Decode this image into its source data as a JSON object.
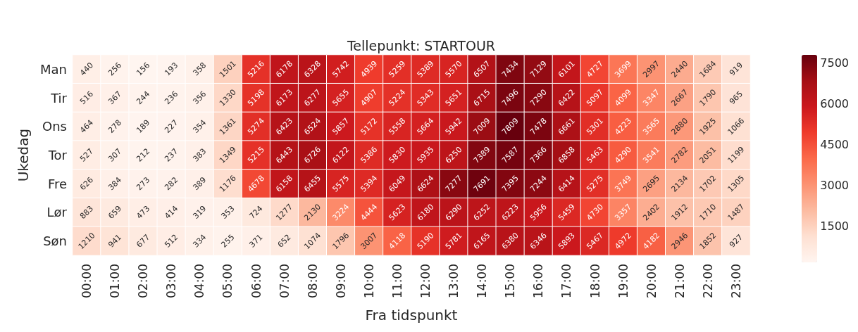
{
  "chart_data": {
    "type": "heatmap",
    "title": "Tellepunkt: STARTOUR",
    "xlabel": "Fra tidspunkt",
    "ylabel": "Ukedag",
    "categories": [
      "00:00",
      "01:00",
      "02:00",
      "03:00",
      "04:00",
      "05:00",
      "06:00",
      "07:00",
      "08:00",
      "09:00",
      "10:00",
      "11:00",
      "12:00",
      "13:00",
      "14:00",
      "15:00",
      "16:00",
      "17:00",
      "18:00",
      "19:00",
      "20:00",
      "21:00",
      "22:00",
      "23:00"
    ],
    "y_categories": [
      "Man",
      "Tir",
      "Ons",
      "Tor",
      "Fre",
      "Lør",
      "Søn"
    ],
    "cells": [
      [
        440,
        256,
        156,
        193,
        358,
        1501,
        5216,
        6178,
        6328,
        5742,
        4939,
        5259,
        5389,
        5570,
        6507,
        7434,
        7129,
        6101,
        4727,
        3699,
        2997,
        2440,
        1684,
        919
      ],
      [
        516,
        367,
        244,
        236,
        356,
        1330,
        5198,
        6173,
        6277,
        5655,
        4907,
        5224,
        5343,
        5651,
        6715,
        7496,
        7290,
        6422,
        5097,
        4099,
        3347,
        2667,
        1790,
        965
      ],
      [
        464,
        278,
        189,
        227,
        354,
        1361,
        5274,
        6423,
        6524,
        5857,
        5172,
        5558,
        5664,
        5942,
        7009,
        7809,
        7478,
        6661,
        5301,
        4223,
        3565,
        2880,
        1925,
        1066
      ],
      [
        527,
        307,
        212,
        237,
        383,
        1349,
        5215,
        6443,
        6726,
        6122,
        5386,
        5830,
        5935,
        6250,
        7389,
        7587,
        7366,
        6858,
        5463,
        4290,
        3541,
        2782,
        2051,
        1199
      ],
      [
        626,
        384,
        273,
        282,
        389,
        1176,
        4678,
        6158,
        6455,
        5575,
        5394,
        6049,
        6624,
        7277,
        7691,
        7395,
        7244,
        6414,
        5275,
        3749,
        2695,
        2134,
        1702,
        1305
      ],
      [
        883,
        659,
        473,
        414,
        319,
        353,
        724,
        1277,
        2130,
        3224,
        4444,
        5623,
        6180,
        6290,
        6252,
        6223,
        5956,
        5459,
        4730,
        3357,
        2402,
        1912,
        1710,
        1487
      ],
      [
        1210,
        941,
        677,
        512,
        334,
        255,
        371,
        652,
        1074,
        1796,
        3007,
        4118,
        5190,
        5781,
        6165,
        6380,
        6346,
        5893,
        5467,
        4972,
        4182,
        2946,
        1852,
        927
      ]
    ],
    "clim": [
      156,
      7809
    ],
    "cticks": [
      1500,
      3000,
      4500,
      6000,
      7500
    ],
    "data_labels": true
  }
}
